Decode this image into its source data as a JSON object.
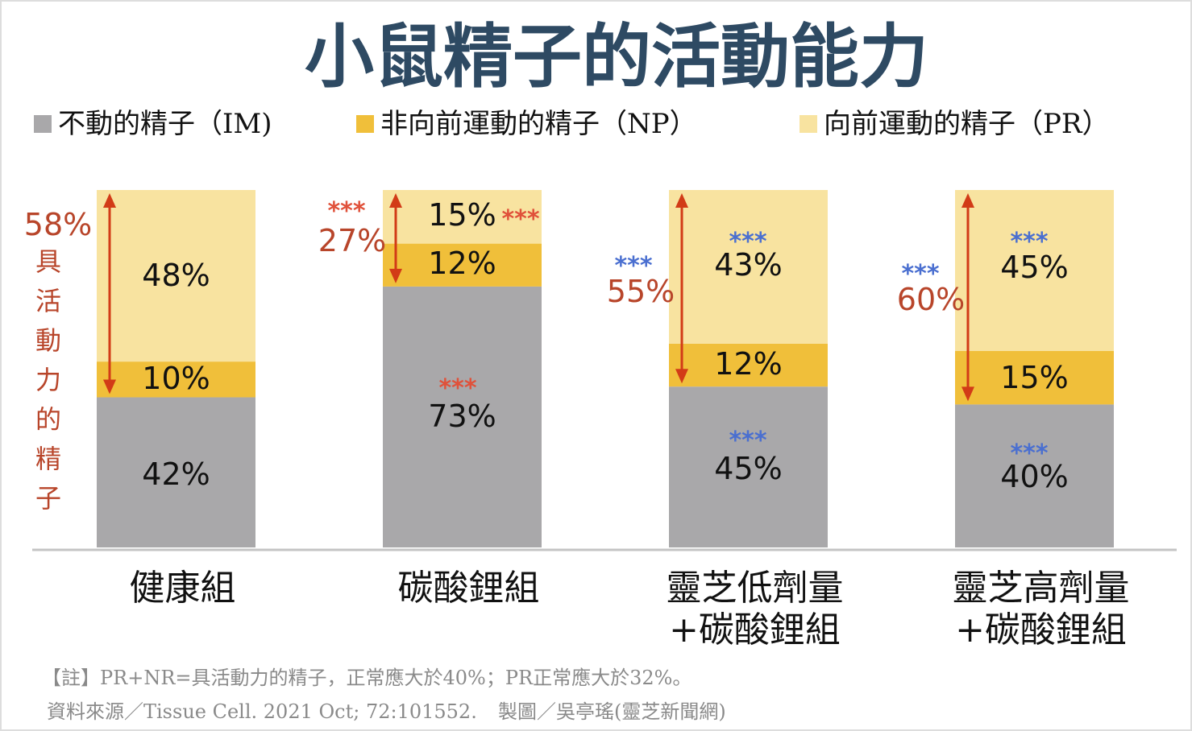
{
  "chart_data": {
    "type": "bar",
    "stacked": true,
    "title": "小鼠精子的活動能力",
    "categories": [
      [
        "健康組"
      ],
      [
        "碳酸鋰組"
      ],
      [
        "靈芝低劑量",
        "+碳酸鋰組"
      ],
      [
        "靈芝高劑量",
        "+碳酸鋰組"
      ]
    ],
    "series": [
      {
        "name": "不動的精子（IM)",
        "color": "#a9a8aa",
        "values": [
          42,
          73,
          45,
          40
        ]
      },
      {
        "name": "非向前運動的精子（NP）",
        "color": "#f0bf3a",
        "values": [
          10,
          12,
          12,
          15
        ]
      },
      {
        "name": "向前運動的精子（PR）",
        "color": "#f8e3a0",
        "values": [
          48,
          15,
          43,
          45
        ]
      }
    ],
    "value_labels": [
      [
        "42%",
        "10%",
        "48%"
      ],
      [
        "73%",
        "12%",
        "15%"
      ],
      [
        "45%",
        "12%",
        "43%"
      ],
      [
        "40%",
        "15%",
        "45%"
      ]
    ],
    "active_labels": [
      "58%",
      "27%",
      "55%",
      "60%"
    ],
    "active_axis_label": "具活動力的精子",
    "significance": {
      "marker": "***",
      "red": "#e0513a",
      "blue": "#4a6fd0"
    },
    "ylim": [
      0,
      100
    ],
    "legend": "top",
    "grid": false,
    "colors": {
      "title": "#2e4a63",
      "arrow": "#d23b17",
      "active_label": "#b8452a"
    }
  },
  "notes": {
    "note": "【註】PR+NR=具活動力的精子，正常應大於40%；PR正常應大於32%。",
    "source": "資料來源／Tissue Cell. 2021 Oct; 72:101552.",
    "credit": "製圖／吳亭瑤(靈芝新聞網)"
  }
}
